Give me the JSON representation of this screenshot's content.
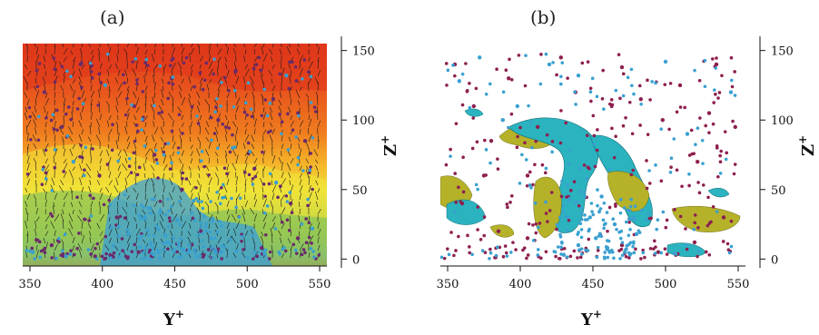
{
  "chart_data": [
    {
      "type": "scatter",
      "panel_label": "(a)",
      "xlabel": "Y",
      "xlabel_sup": "+",
      "ylabel": "Z",
      "ylabel_sup": "+",
      "xlim": [
        345,
        555
      ],
      "ylim": [
        -5,
        155
      ],
      "xticks": [
        350,
        400,
        450,
        500,
        550
      ],
      "yticks": [
        0,
        50,
        100,
        150
      ],
      "background": "filled contour map with overlaid velocity vectors",
      "series": [
        {
          "color": "#6b2a6b",
          "values": [
            [
              360,
              120
            ],
            [
              372,
              95
            ],
            [
              385,
              140
            ],
            [
              398,
              60
            ],
            [
              410,
              30
            ],
            [
              422,
              110
            ],
            [
              436,
              75
            ],
            [
              448,
              130
            ],
            [
              455,
              50
            ],
            [
              468,
              20
            ],
            [
              480,
              100
            ],
            [
              492,
              135
            ],
            [
              505,
              65
            ],
            [
              518,
              115
            ],
            [
              530,
              40
            ],
            [
              540,
              85
            ],
            [
              365,
              10
            ],
            [
              395,
              2
            ],
            [
              425,
              5
            ],
            [
              470,
              3
            ],
            [
              510,
              8
            ],
            [
              535,
              15
            ]
          ]
        },
        {
          "color": "#3aa0d0",
          "values": [
            [
              352,
              5
            ],
            [
              375,
              2
            ],
            [
              402,
              125
            ],
            [
              418,
              18
            ],
            [
              430,
              8
            ],
            [
              440,
              35
            ],
            [
              445,
              12
            ],
            [
              452,
              28
            ],
            [
              460,
              6
            ],
            [
              463,
              42
            ],
            [
              475,
              15
            ],
            [
              490,
              80
            ],
            [
              512,
              4
            ],
            [
              527,
              132
            ],
            [
              545,
              22
            ],
            [
              380,
              70
            ],
            [
              520,
              55
            ]
          ]
        }
      ],
      "colormap": [
        "#e0371b",
        "#f07c1f",
        "#f5b82a",
        "#f0e338",
        "#b9d24a",
        "#7bbf5c",
        "#3b9fd8"
      ]
    },
    {
      "type": "scatter",
      "panel_label": "(b)",
      "xlabel": "Y",
      "xlabel_sup": "+",
      "ylabel": "Z",
      "ylabel_sup": "+",
      "xlim": [
        345,
        555
      ],
      "ylim": [
        -5,
        155
      ],
      "xticks": [
        350,
        400,
        450,
        500,
        550
      ],
      "yticks": [
        0,
        50,
        100,
        150
      ],
      "background": "iso-surfaces (olive and cyan) with particles",
      "series": [
        {
          "color": "#8e1f4f",
          "values": [
            [
              355,
              140
            ],
            [
              368,
              110
            ],
            [
              380,
              85
            ],
            [
              392,
              130
            ],
            [
              405,
              60
            ],
            [
              412,
              95
            ],
            [
              428,
              145
            ],
            [
              438,
              120
            ],
            [
              470,
              138
            ],
            [
              483,
              115
            ],
            [
              498,
              100
            ],
            [
              510,
              125
            ],
            [
              522,
              70
            ],
            [
              535,
              140
            ],
            [
              548,
              95
            ],
            [
              360,
              40
            ],
            [
              385,
              20
            ],
            [
              405,
              15
            ],
            [
              470,
              10
            ],
            [
              495,
              5
            ],
            [
              520,
              12
            ],
            [
              540,
              30
            ],
            [
              375,
              60
            ],
            [
              530,
              105
            ]
          ]
        },
        {
          "color": "#3aa0d0",
          "values": [
            [
              358,
              128
            ],
            [
              372,
              145
            ],
            [
              398,
              110
            ],
            [
              420,
              140
            ],
            [
              440,
              132
            ],
            [
              448,
              30
            ],
            [
              452,
              15
            ],
            [
              456,
              45
            ],
            [
              460,
              8
            ],
            [
              465,
              25
            ],
            [
              472,
              5
            ],
            [
              480,
              18
            ],
            [
              500,
              142
            ],
            [
              515,
              90
            ],
            [
              545,
              120
            ],
            [
              388,
              100
            ],
            [
              430,
              3
            ],
            [
              440,
              10
            ]
          ]
        }
      ],
      "iso_colors": [
        "#b5b22a",
        "#2bb3bf"
      ]
    }
  ]
}
